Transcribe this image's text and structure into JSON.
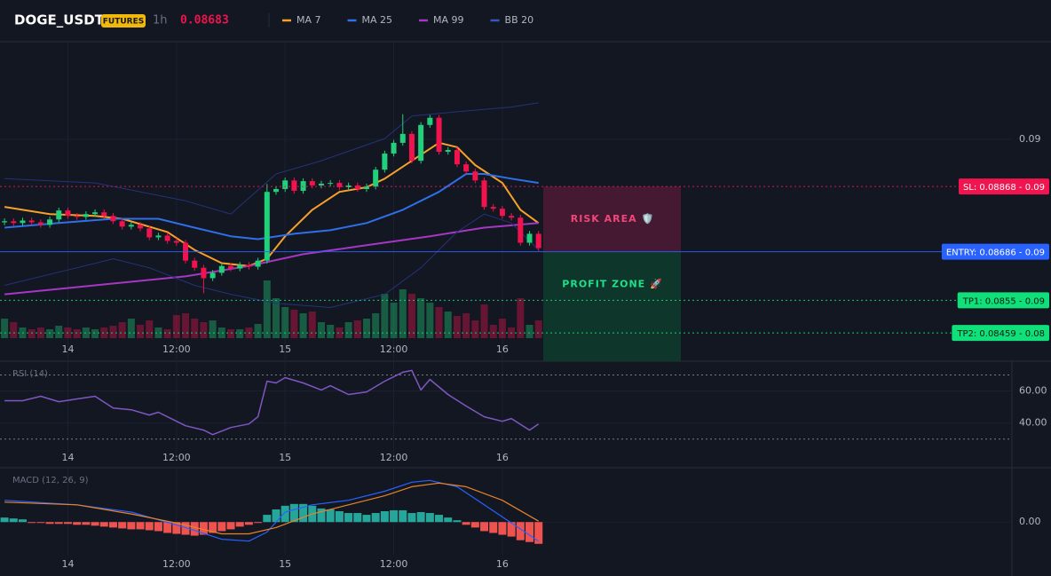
{
  "chart_data": [
    {
      "type": "candlestick",
      "symbol": "DOGE_USDT",
      "badge": "FUTURES",
      "interval": "1h",
      "price": "0.08683",
      "up_color": "#22cf7a",
      "down_color": "#f0134d",
      "grid": true,
      "xlim": [
        -0.5,
        111.3
      ],
      "xticks": [
        {
          "value": 7,
          "label": "14"
        },
        {
          "value": 19,
          "label": "12:00"
        },
        {
          "value": 31,
          "label": "15"
        },
        {
          "value": 43,
          "label": "12:00"
        },
        {
          "value": 55,
          "label": "16"
        }
      ],
      "ylim": [
        0.0838,
        0.0927
      ],
      "yticks": [
        0.09
      ],
      "candles": {
        "x": [
          0,
          1,
          2,
          3,
          4,
          5,
          6,
          7,
          8,
          9,
          10,
          11,
          12,
          13,
          14,
          15,
          16,
          17,
          18,
          19,
          20,
          21,
          22,
          23,
          24,
          25,
          26,
          27,
          28,
          29,
          30,
          31,
          32,
          33,
          34,
          35,
          36,
          37,
          38,
          39,
          40,
          41,
          42,
          43,
          44,
          45,
          46,
          47,
          48,
          49,
          50,
          51,
          52,
          53,
          54,
          55,
          56,
          57,
          58,
          59
        ],
        "open": [
          0.08768,
          0.08771,
          0.08766,
          0.08773,
          0.08768,
          0.08761,
          0.08776,
          0.08801,
          0.08786,
          0.08783,
          0.08791,
          0.08796,
          0.08786,
          0.08771,
          0.08756,
          0.08761,
          0.08751,
          0.08726,
          0.08731,
          0.08716,
          0.08711,
          0.08661,
          0.08641,
          0.08612,
          0.08627,
          0.08646,
          0.08639,
          0.08649,
          0.08644,
          0.08661,
          0.08853,
          0.08861,
          0.08885,
          0.08856,
          0.08883,
          0.08871,
          0.08876,
          0.08878,
          0.08866,
          0.08871,
          0.08861,
          0.08868,
          0.08915,
          0.0896,
          0.0899,
          0.09015,
          0.0894,
          0.0904,
          0.0906,
          0.08965,
          0.0897,
          0.0893,
          0.0891,
          0.08885,
          0.08811,
          0.08806,
          0.08786,
          0.08781,
          0.08711,
          0.08736
        ],
        "high": [
          0.08779,
          0.08779,
          0.08781,
          0.08781,
          0.08776,
          0.08784,
          0.08809,
          0.08809,
          0.08794,
          0.08799,
          0.08804,
          0.08804,
          0.08794,
          0.08779,
          0.08769,
          0.08769,
          0.08759,
          0.08739,
          0.08739,
          0.08724,
          0.08719,
          0.08669,
          0.08649,
          0.08635,
          0.08654,
          0.08654,
          0.08657,
          0.08657,
          0.08669,
          0.08875,
          0.08869,
          0.08893,
          0.08893,
          0.08891,
          0.08891,
          0.08884,
          0.08886,
          0.08886,
          0.08879,
          0.08879,
          0.08876,
          0.08923,
          0.08968,
          0.08998,
          0.0907,
          0.09023,
          0.09048,
          0.09068,
          0.09068,
          0.08978,
          0.08978,
          0.08938,
          0.08918,
          0.08893,
          0.08819,
          0.08814,
          0.08794,
          0.08789,
          0.08744,
          0.08744
        ],
        "low": [
          0.0876,
          0.08758,
          0.08758,
          0.0876,
          0.08753,
          0.08753,
          0.08768,
          0.08778,
          0.08775,
          0.08775,
          0.08783,
          0.08778,
          0.08763,
          0.08748,
          0.08748,
          0.08743,
          0.08718,
          0.08718,
          0.08708,
          0.08703,
          0.08653,
          0.08633,
          0.0857,
          0.08604,
          0.08619,
          0.08631,
          0.08631,
          0.08636,
          0.08636,
          0.08653,
          0.08845,
          0.08853,
          0.08848,
          0.08848,
          0.08863,
          0.08863,
          0.08868,
          0.08858,
          0.08858,
          0.08853,
          0.08853,
          0.0886,
          0.08907,
          0.08952,
          0.08982,
          0.08932,
          0.08932,
          0.09032,
          0.08957,
          0.08957,
          0.08922,
          0.08902,
          0.08877,
          0.08803,
          0.08798,
          0.08778,
          0.08773,
          0.08703,
          0.08703,
          0.08688
        ],
        "close": [
          0.08771,
          0.08766,
          0.08773,
          0.08768,
          0.08761,
          0.08776,
          0.08801,
          0.08786,
          0.08783,
          0.08791,
          0.08796,
          0.08786,
          0.08771,
          0.08756,
          0.08761,
          0.08751,
          0.08726,
          0.08731,
          0.08716,
          0.08711,
          0.08661,
          0.08641,
          0.08612,
          0.08627,
          0.08646,
          0.08639,
          0.08649,
          0.08644,
          0.08661,
          0.08853,
          0.08861,
          0.08885,
          0.08856,
          0.08883,
          0.08871,
          0.08876,
          0.08878,
          0.08866,
          0.08871,
          0.08861,
          0.08868,
          0.08915,
          0.0896,
          0.0899,
          0.09015,
          0.0894,
          0.0904,
          0.0906,
          0.08965,
          0.0897,
          0.0893,
          0.0891,
          0.08885,
          0.08811,
          0.08806,
          0.08786,
          0.08781,
          0.08711,
          0.08736,
          0.08696
        ],
        "volume": [
          22,
          18,
          12,
          10,
          12,
          10,
          14,
          12,
          10,
          12,
          10,
          12,
          14,
          18,
          22,
          15,
          20,
          12,
          10,
          26,
          28,
          22,
          18,
          20,
          12,
          10,
          10,
          12,
          16,
          65,
          45,
          35,
          32,
          28,
          30,
          18,
          15,
          12,
          18,
          20,
          22,
          28,
          50,
          40,
          55,
          50,
          45,
          40,
          35,
          30,
          25,
          28,
          20,
          38,
          15,
          22,
          12,
          45,
          15,
          20
        ]
      },
      "overlays": [
        {
          "name": "MA 7",
          "color": "#f7a128",
          "x": [
            0,
            5,
            10,
            13,
            18,
            21,
            24,
            27,
            29,
            31,
            34,
            37,
            40,
            42,
            45,
            48,
            50,
            52,
            55,
            57,
            59
          ],
          "values": [
            0.08811,
            0.08791,
            0.08786,
            0.08778,
            0.08741,
            0.08691,
            0.08654,
            0.08646,
            0.08666,
            0.08729,
            0.08803,
            0.08853,
            0.08866,
            0.0889,
            0.0894,
            0.0899,
            0.08978,
            0.08928,
            0.08878,
            0.08803,
            0.08766
          ]
        },
        {
          "name": "MA 25",
          "color": "#2f6fe8",
          "x": [
            0,
            6,
            12,
            17,
            21,
            25,
            28,
            32,
            36,
            40,
            44,
            48,
            51,
            53,
            56,
            59
          ],
          "values": [
            0.08753,
            0.08766,
            0.08778,
            0.08778,
            0.08753,
            0.08729,
            0.08721,
            0.08736,
            0.08746,
            0.08766,
            0.08803,
            0.08853,
            0.08903,
            0.08903,
            0.0889,
            0.08878
          ]
        },
        {
          "name": "MA 99",
          "color": "#a537c2",
          "x": [
            0,
            10,
            20,
            27,
            33,
            40,
            47,
            53,
            59
          ],
          "values": [
            0.08567,
            0.08592,
            0.08617,
            0.08646,
            0.08679,
            0.08704,
            0.08729,
            0.08753,
            0.08766
          ]
        },
        {
          "name": "BB 20",
          "color": "#24337a",
          "upper": {
            "x": [
              0,
              10,
              20,
              25,
              30,
              35,
              42,
              45,
              50,
              56,
              59
            ],
            "values": [
              0.0889,
              0.08878,
              0.08828,
              0.08791,
              0.08903,
              0.0894,
              0.09002,
              0.09065,
              0.09077,
              0.0909,
              0.09102
            ]
          },
          "lower": {
            "x": [
              0,
              8,
              12,
              16,
              21,
              25,
              30,
              36,
              42,
              46,
              50,
              53,
              56,
              59
            ],
            "values": [
              0.08592,
              0.08641,
              0.08666,
              0.08641,
              0.08592,
              0.08567,
              0.08542,
              0.0853,
              0.08567,
              0.08641,
              0.08741,
              0.08791,
              0.08766,
              0.08691
            ]
          }
        }
      ],
      "price_lines": [
        {
          "label": "SL: 0.08868 - 0.09",
          "value": 0.08868,
          "color": "#f0154f",
          "text_color": "#ffffff",
          "style": "dotted"
        },
        {
          "label": "ENTRY: 0.08686 - 0.09",
          "value": 0.08686,
          "color": "#2962ff",
          "text_color": "#ffffff",
          "style": "solid"
        },
        {
          "label": "TP1: 0.0855 - 0.09",
          "value": 0.0855,
          "color": "#10e07a",
          "text_color": "#0b1a12",
          "style": "dotted"
        },
        {
          "label": "TP2: 0.08459 - 0.08",
          "value": 0.08459,
          "color": "#10e07a",
          "text_color": "#0b1a12",
          "style": "dotted"
        }
      ],
      "zones": [
        {
          "label": "RISK AREA 🛡️",
          "from": 0.08868,
          "to": 0.08686,
          "color": "#4a1933",
          "text_color": "#f0477a"
        },
        {
          "label": "PROFIT ZONE 🚀",
          "from": 0.08686,
          "color": "#0f3a2c",
          "text_color": "#1fe08a"
        }
      ]
    },
    {
      "type": "line",
      "title": "RSI (14)",
      "color": "#7e57c2",
      "grid": true,
      "xlim": [
        -0.5,
        111.3
      ],
      "xticks": [
        {
          "value": 7,
          "label": "14"
        },
        {
          "value": 19,
          "label": "12:00"
        },
        {
          "value": 31,
          "label": "15"
        },
        {
          "value": 43,
          "label": "12:00"
        },
        {
          "value": 55,
          "label": "16"
        }
      ],
      "ylim": [
        16,
        78
      ],
      "yticks": [
        {
          "value": 40,
          "label": "40.00"
        },
        {
          "value": 60,
          "label": "60.00"
        }
      ],
      "levels": [
        70,
        30
      ],
      "x": [
        0,
        2,
        4,
        6,
        8,
        10,
        12,
        14,
        16,
        17,
        18,
        20,
        22,
        23,
        25,
        27,
        28,
        29,
        30,
        31,
        33,
        35,
        36,
        38,
        40,
        42,
        44,
        45,
        46,
        47,
        49,
        51,
        53,
        55,
        56,
        58,
        59
      ],
      "values": [
        53.9,
        53.9,
        56.7,
        53.3,
        55.0,
        56.7,
        49.4,
        48.3,
        45.0,
        46.7,
        43.9,
        38.3,
        35.6,
        32.8,
        37.2,
        39.4,
        43.9,
        66.1,
        65.0,
        68.3,
        65.0,
        60.6,
        63.3,
        57.8,
        59.4,
        66.1,
        71.7,
        72.8,
        60.6,
        67.2,
        57.8,
        50.6,
        43.9,
        41.1,
        42.8,
        35.6,
        39.4
      ]
    },
    {
      "type": "macd",
      "title": "MACD (12, 26, 9)",
      "grid": true,
      "up_color": "#26a69a",
      "down_color": "#ef5350",
      "xlim": [
        -0.5,
        111.3
      ],
      "xticks": [
        {
          "value": 7,
          "label": "14"
        },
        {
          "value": 19,
          "label": "12:00"
        },
        {
          "value": 31,
          "label": "15"
        },
        {
          "value": 43,
          "label": "12:00"
        },
        {
          "value": 55,
          "label": "16"
        }
      ],
      "ylim": [
        -0.00036,
        0.00059
      ],
      "yticks": [
        {
          "value": 0,
          "label": "0.00"
        }
      ],
      "x": [
        0,
        1,
        2,
        3,
        4,
        5,
        6,
        7,
        8,
        9,
        10,
        11,
        12,
        13,
        14,
        15,
        16,
        17,
        18,
        19,
        20,
        21,
        22,
        23,
        24,
        25,
        26,
        27,
        28,
        29,
        30,
        31,
        32,
        33,
        34,
        35,
        36,
        37,
        38,
        39,
        40,
        41,
        42,
        43,
        44,
        45,
        46,
        47,
        48,
        49,
        50,
        51,
        52,
        53,
        54,
        55,
        56,
        57,
        58,
        59
      ],
      "histogram": [
        5e-05,
        4e-05,
        3e-05,
        -1e-05,
        -1e-05,
        -2e-05,
        -2e-05,
        -2e-05,
        -3e-05,
        -3e-05,
        -4e-05,
        -5e-05,
        -6e-05,
        -7e-05,
        -8e-05,
        -8e-05,
        -9e-05,
        -0.0001,
        -0.00012,
        -0.00013,
        -0.00014,
        -0.00015,
        -0.00014,
        -0.00012,
        -0.0001,
        -8e-05,
        -5e-05,
        -3e-05,
        -1e-05,
        8e-05,
        0.00014,
        0.00018,
        0.0002,
        0.0002,
        0.00018,
        0.00015,
        0.00014,
        0.00012,
        0.0001,
        0.0001,
        8e-05,
        0.0001,
        0.00012,
        0.00013,
        0.00013,
        0.0001,
        0.00011,
        0.0001,
        8e-05,
        5e-05,
        2e-05,
        -3e-05,
        -6e-05,
        -0.0001,
        -0.00012,
        -0.00014,
        -0.00016,
        -0.0002,
        -0.00022,
        -0.00024
      ],
      "macd": {
        "color": "#2962ff",
        "x": [
          0,
          8,
          14,
          20,
          24,
          27,
          29,
          31,
          34,
          38,
          42,
          45,
          47,
          50,
          53,
          56,
          59
        ],
        "values": [
          0.00024,
          0.00019,
          0.00011,
          -6e-05,
          -0.00019,
          -0.00021,
          -0.00011,
          0.00011,
          0.00019,
          0.00024,
          0.00034,
          0.00044,
          0.00046,
          0.00039,
          0.00019,
          -1e-05,
          -0.00021
        ]
      },
      "signal": {
        "color": "#e8832a",
        "x": [
          0,
          8,
          14,
          19,
          24,
          27,
          30,
          34,
          38,
          42,
          45,
          48,
          51,
          55,
          59
        ],
        "values": [
          0.00022,
          0.00019,
          9e-05,
          -1e-05,
          -0.00013,
          -0.00013,
          -6e-05,
          9e-05,
          0.00019,
          0.00029,
          0.00039,
          0.00043,
          0.00039,
          0.00024,
          1e-05
        ]
      }
    }
  ]
}
